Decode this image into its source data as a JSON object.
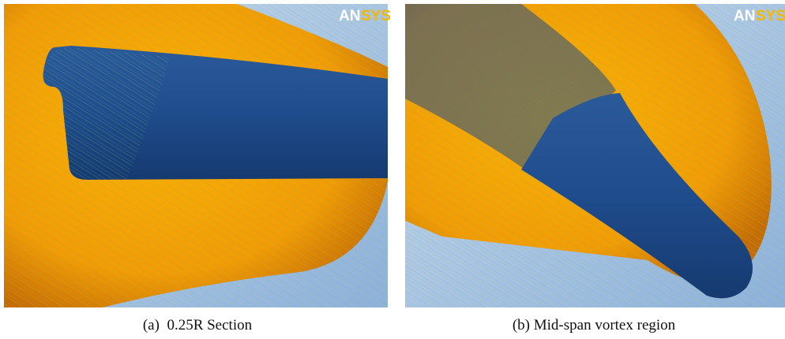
{
  "panels": [
    {
      "logo": {
        "part1": "AN",
        "part2": "SYS"
      },
      "caption": "(a)  0.25R Section"
    },
    {
      "logo": {
        "part1": "AN",
        "part2": "SYS"
      },
      "caption": "(b) Mid-span vortex region"
    }
  ]
}
